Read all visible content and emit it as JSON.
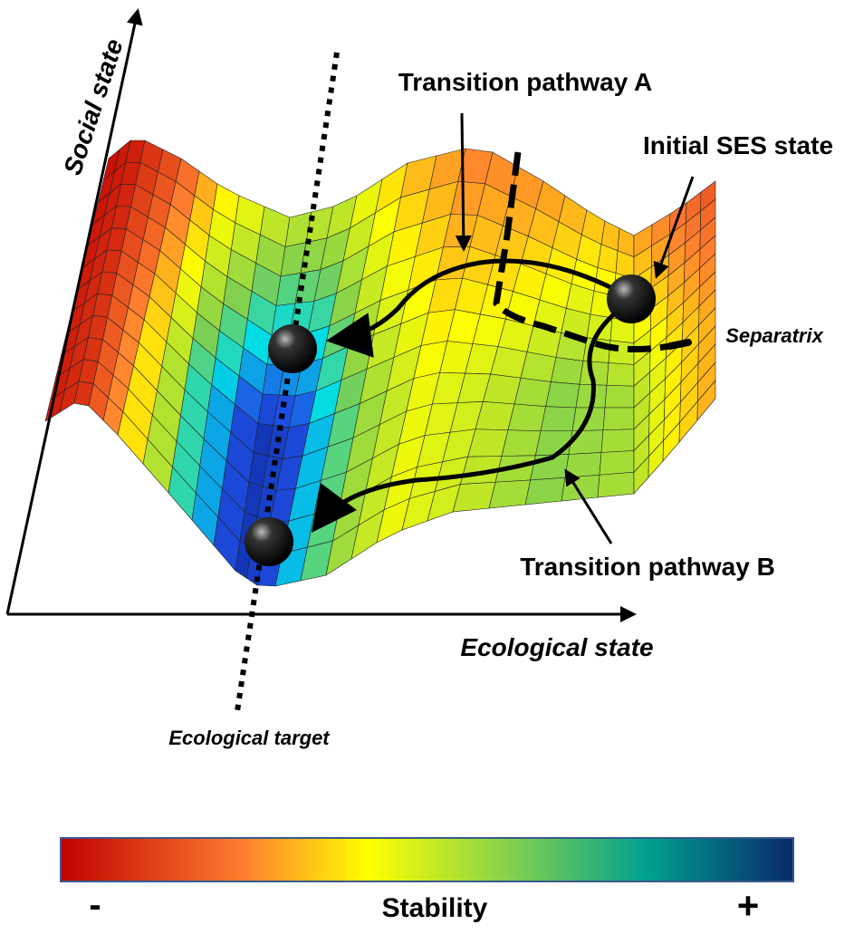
{
  "axes": {
    "y_label": "Social state",
    "x_label": "Ecological state"
  },
  "annotations": {
    "pathway_a": "Transition pathway A",
    "initial_state": "Initial SES state",
    "separatrix": "Separatrix",
    "pathway_b": "Transition pathway B",
    "target": "Ecological target"
  },
  "legend": {
    "minus": "-",
    "title": "Stability",
    "plus": "+"
  }
}
